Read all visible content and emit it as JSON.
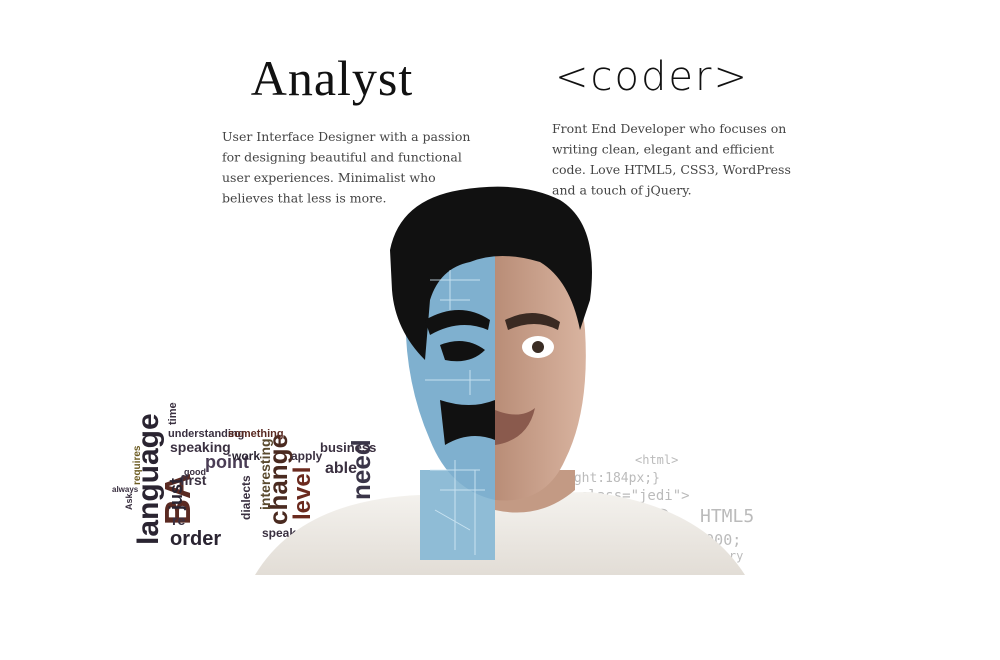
{
  "analyst": {
    "title": "Analyst",
    "description_lines": [
      "User Interface Designer with a passion",
      "for designing beautiful and functional",
      "user experiences. Minimalist who",
      "believes that less is more."
    ]
  },
  "coder": {
    "title": "<coder>",
    "description_lines": [
      "Front End Developer who focuses on",
      "writing clean, elegant and efficient",
      "code. Love HTML5, CSS3, WordPress",
      "and a touch of jQuery."
    ]
  },
  "word_cloud": [
    "language",
    "BA",
    "order",
    "change",
    "point",
    "speaking",
    "level",
    "need",
    "business",
    "able",
    "interesting",
    "understanding",
    "something",
    "first",
    "just",
    "requires",
    "dialects",
    "apply",
    "work",
    "time",
    "good",
    "Ask",
    "always",
    "speak",
    "re"
  ],
  "code_snippets": [
    "<html>",
    "ight:184px;}",
    "class=\"jedi\">",
    "CSS3",
    "HTML5",
    "lor:#000;",
    "jQuery"
  ]
}
